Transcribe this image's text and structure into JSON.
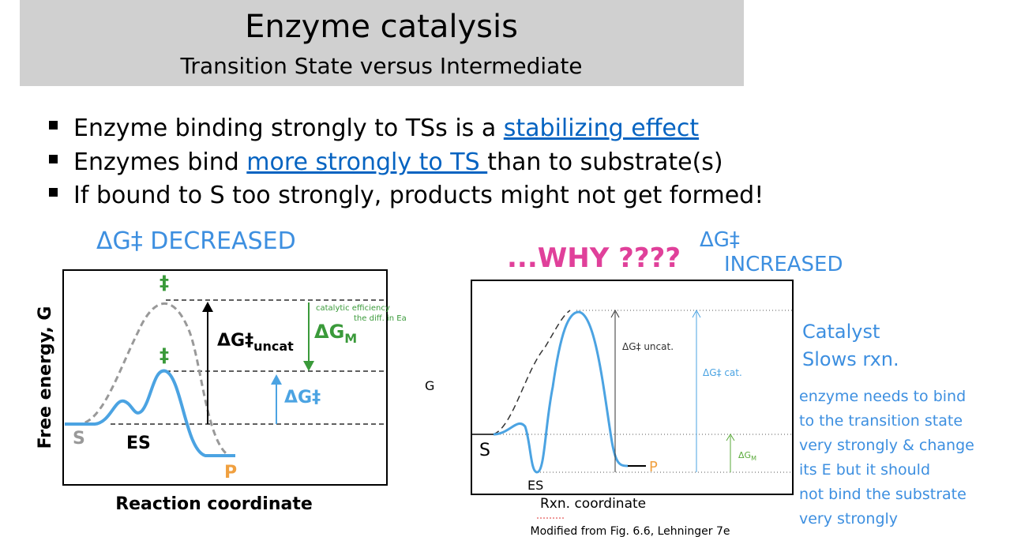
{
  "header": {
    "title": "Enzyme catalysis",
    "subtitle": "Transition State versus Intermediate"
  },
  "bullets": [
    {
      "before": "Enzyme binding strongly to TSs is a ",
      "link": "stabilizing effect"
    },
    {
      "before": "Enzymes bind ",
      "link": "more strongly to TS ",
      "after": "than to substrate(s)"
    },
    {
      "before": "If bound to S too strongly, products might not get formed!"
    }
  ],
  "left_diagram": {
    "y_label": "Free energy, G",
    "x_label": "Reaction coordinate",
    "ts_mark_uncat": "‡",
    "ts_mark_cat": "‡",
    "s": "S",
    "es": "ES",
    "p": "P",
    "dg_uncat": {
      "main": "ΔG‡",
      "sub": "uncat"
    },
    "dg_m": {
      "main": "ΔG",
      "sub": "M"
    },
    "dg_cat": "ΔG‡",
    "note_line1": "catalytic efficiency",
    "note_line2": "the diff. in Ea"
  },
  "right_diagram": {
    "dg_uncat": "ΔG‡ uncat.",
    "dg_cat": "ΔG‡ cat.",
    "dg_m": {
      "main": "ΔG",
      "sub": "M"
    },
    "s": "S",
    "es": "ES",
    "p": "P"
  },
  "annotations": {
    "decreased": "ΔG‡ DECREASED",
    "why": "...WHY ????",
    "increased_1": "ΔG‡",
    "increased_2": "INCREASED",
    "g": "G",
    "x_label": "Rxn. coordinate",
    "catalyst_1": "Catalyst",
    "catalyst_2": "Slows rxn.",
    "enzyme_lines": [
      "enzyme needs to bind",
      "to the transition state",
      "very strongly & change",
      "its E but it should",
      "not bind the substrate",
      "very strongly"
    ],
    "source": "Modified from Fig. 6.6, Lehninger 7e"
  }
}
